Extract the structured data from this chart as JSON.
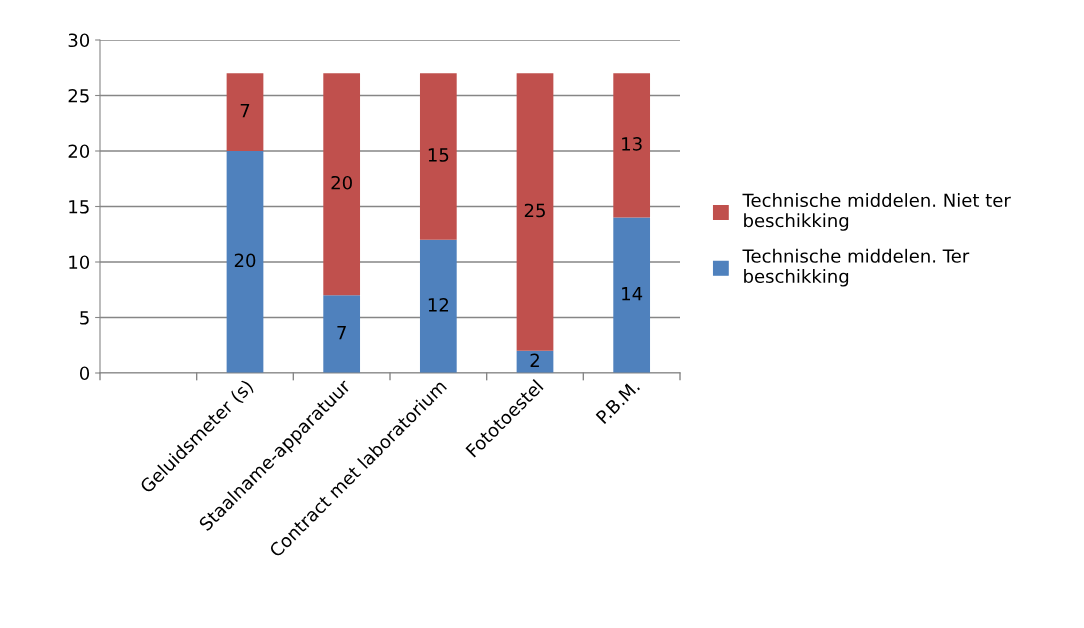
{
  "chart_data": {
    "type": "bar",
    "stacked": true,
    "categories": [
      null,
      "Geluidsmeter (s)",
      "Staalname-apparatuur",
      "Contract met laboratorium",
      "Fototoestel",
      "P.B.M."
    ],
    "series": [
      {
        "name": "Technische middelen. Ter beschikking",
        "color": "#4f81bd",
        "values": [
          null,
          20,
          7,
          12,
          2,
          14
        ]
      },
      {
        "name": "Technische middelen. Niet ter beschikking",
        "color": "#c0504d",
        "values": [
          null,
          7,
          20,
          15,
          25,
          13
        ]
      }
    ],
    "ylim": [
      0,
      30
    ],
    "yticks": [
      0,
      5,
      10,
      15,
      20,
      25,
      30
    ],
    "grid": "y",
    "legend": "right",
    "data_labels": true
  }
}
